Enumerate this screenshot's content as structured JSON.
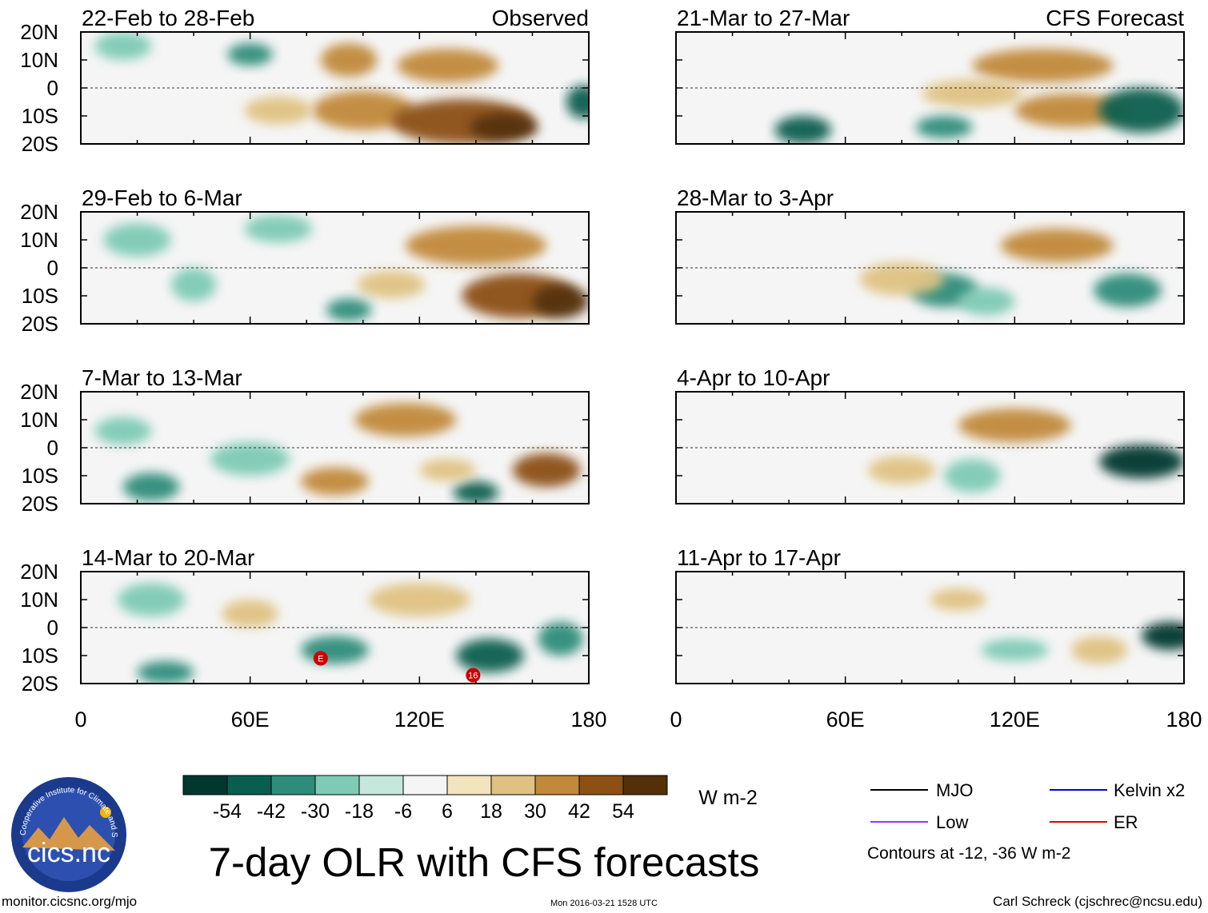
{
  "chart_data": {
    "type": "heatmap",
    "title": "7-day OLR with CFS forecasts",
    "variable": "OLR anomaly",
    "units": "W m-2",
    "lat_ticks": [
      "20N",
      "10N",
      "0",
      "10S",
      "20S"
    ],
    "lon_ticks": [
      "0",
      "60E",
      "120E",
      "180"
    ],
    "lat_range": [
      -20,
      20
    ],
    "lon_range": [
      0,
      180
    ],
    "colorbar": {
      "labels": [
        "-54",
        "-42",
        "-30",
        "-18",
        "-6",
        "6",
        "18",
        "30",
        "42",
        "54"
      ],
      "colors": [
        "#00382d",
        "#0a5e50",
        "#2e8c7a",
        "#7fcab4",
        "#c4e8dc",
        "#f5f5f5",
        "#f4e4be",
        "#dfc283",
        "#c1893a",
        "#8c5014",
        "#543008"
      ],
      "units": "W m-2"
    },
    "legend": {
      "items": [
        {
          "label": "MJO",
          "color": "#000000"
        },
        {
          "label": "Kelvin x2",
          "color": "#0000e6"
        },
        {
          "label": "Low",
          "color": "#9933ff"
        },
        {
          "label": "ER",
          "color": "#e60000"
        }
      ],
      "note": "Contours at -12, -36 W m-2"
    },
    "column_titles": [
      "Observed",
      "CFS Forecast"
    ],
    "panels": [
      {
        "period": "22-Feb to 28-Feb",
        "source": "observed"
      },
      {
        "period": "29-Feb to 6-Mar",
        "source": "observed"
      },
      {
        "period": "7-Mar to 13-Mar",
        "source": "observed"
      },
      {
        "period": "14-Mar to 20-Mar",
        "source": "observed"
      },
      {
        "period": "21-Mar to 27-Mar",
        "source": "forecast"
      },
      {
        "period": "28-Mar to 3-Apr",
        "source": "forecast"
      },
      {
        "period": "4-Apr to 10-Apr",
        "source": "forecast"
      },
      {
        "period": "11-Apr to 17-Apr",
        "source": "forecast"
      }
    ],
    "annotations": [
      "E",
      "16"
    ]
  },
  "footer": {
    "url": "monitor.cicsnc.org/mjo",
    "timestamp": "Mon 2016-03-21 1528 UTC",
    "author": "Carl Schreck (cjschrec@ncsu.edu)",
    "logo_text": "cics.nc",
    "logo_ring_text": "Cooperative Institute for Climate and Satellites"
  }
}
